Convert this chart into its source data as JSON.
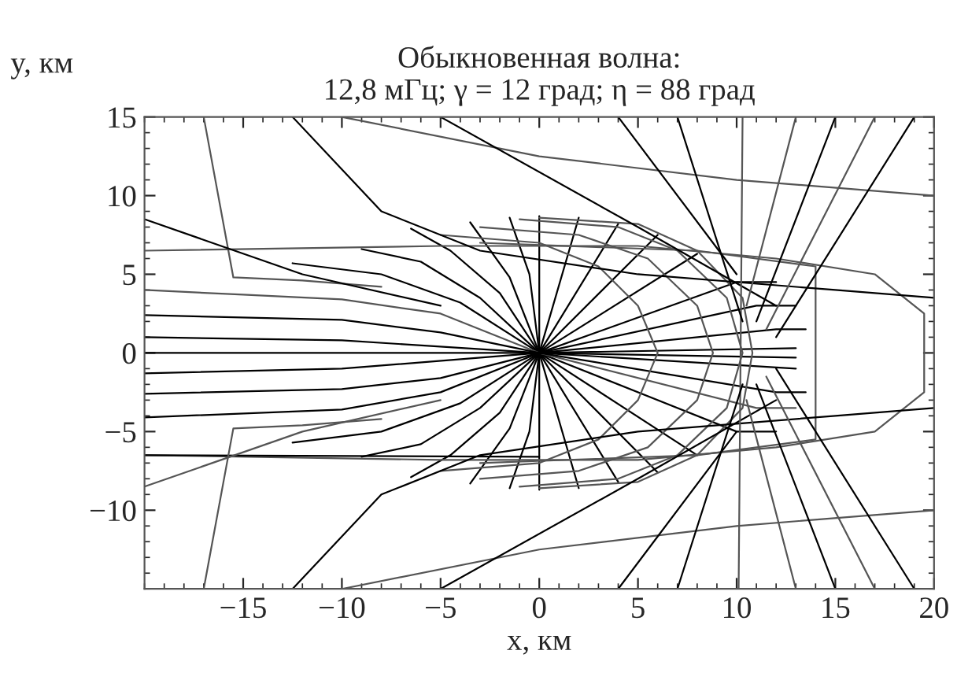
{
  "chart_data": {
    "type": "line",
    "title": "Обыкновенная волна:\n12,8 мГц; γ = 12 град; η = 88 град",
    "xlabel": "x, км",
    "ylabel": "y, км",
    "xlim": [
      -20,
      20
    ],
    "ylim": [
      -15,
      15
    ],
    "xticks": [
      -15,
      -10,
      -5,
      0,
      5,
      10,
      15,
      20
    ],
    "yticks": [
      -10,
      -5,
      0,
      5,
      10,
      15
    ],
    "grid": false,
    "marker": "none",
    "line_style": "solid",
    "series": [
      {
        "color": "#000000",
        "x": [
          -1.5,
          -0.5,
          0,
          2
        ],
        "values": [
          8.6,
          5,
          0,
          -8.6
        ]
      },
      {
        "color": "#000000",
        "x": [
          -3.5,
          -1.5,
          0,
          4
        ],
        "values": [
          8.3,
          4.8,
          0,
          -8.2
        ]
      },
      {
        "color": "#000000",
        "x": [
          -6.5,
          -4.5,
          -2,
          0,
          6
        ],
        "values": [
          7.9,
          6.5,
          3.8,
          0,
          -7.6
        ]
      },
      {
        "color": "#000000",
        "x": [
          -9,
          -6,
          -3,
          0,
          8
        ],
        "values": [
          6.6,
          5.8,
          3.5,
          0,
          -6.5
        ]
      },
      {
        "color": "#000000",
        "x": [
          -12.5,
          -8,
          -4,
          0,
          10,
          12
        ],
        "values": [
          5.7,
          5.0,
          3.2,
          0,
          -5,
          -5
        ]
      },
      {
        "color": "#555555",
        "x": [
          -20,
          -15,
          -10,
          -5,
          0,
          11,
          13
        ],
        "values": [
          4.0,
          3.7,
          3.4,
          2.5,
          0,
          -3.5,
          -3.5
        ]
      },
      {
        "color": "#000000",
        "x": [
          -20,
          -10,
          -5,
          0,
          12,
          13.5
        ],
        "values": [
          2.4,
          2.1,
          1.3,
          0,
          -2.5,
          -2.5
        ]
      },
      {
        "color": "#000000",
        "x": [
          -20,
          -10,
          0,
          13
        ],
        "values": [
          1.0,
          0.8,
          0,
          -1
        ]
      },
      {
        "color": "#000000",
        "x": [
          -20,
          0,
          13
        ],
        "values": [
          0,
          0,
          -0.3
        ]
      },
      {
        "color": "#000000",
        "x": [
          -20,
          -10,
          0,
          13
        ],
        "values": [
          -1.3,
          -1.0,
          0,
          0.3
        ]
      },
      {
        "color": "#000000",
        "x": [
          -20,
          -10,
          -5,
          0,
          12,
          13.5
        ],
        "values": [
          -2.6,
          -2.3,
          -1.6,
          0,
          1.5,
          1.5
        ]
      },
      {
        "color": "#000000",
        "x": [
          -20,
          -10,
          -5,
          0,
          11,
          13
        ],
        "values": [
          -4.1,
          -3.6,
          -2.5,
          0,
          3,
          3
        ]
      },
      {
        "color": "#000000",
        "x": [
          -12.5,
          -8,
          -4,
          0,
          10,
          12
        ],
        "values": [
          -5.7,
          -5.0,
          -3.2,
          0,
          4.5,
          4.5
        ]
      },
      {
        "color": "#000000",
        "x": [
          -9,
          -6,
          -3,
          0,
          8
        ],
        "values": [
          -6.6,
          -5.8,
          -3.5,
          0,
          6.3
        ]
      },
      {
        "color": "#000000",
        "x": [
          -6.5,
          -4.5,
          -2,
          0,
          6
        ],
        "values": [
          -7.9,
          -6.5,
          -3.8,
          0,
          7.5
        ]
      },
      {
        "color": "#000000",
        "x": [
          -3.5,
          -1.5,
          0,
          4
        ],
        "values": [
          -8.3,
          -4.8,
          0,
          8.2
        ]
      },
      {
        "color": "#000000",
        "x": [
          -1.5,
          -0.5,
          0,
          2
        ],
        "values": [
          -8.6,
          -5,
          0,
          8.6
        ]
      },
      {
        "color": "#000000",
        "x": [
          0,
          0,
          0
        ],
        "values": [
          -8.7,
          0,
          8.7
        ]
      },
      {
        "color": "#555555",
        "x": [
          -5,
          0,
          3,
          5,
          6,
          5,
          3,
          0,
          -5
        ],
        "values": [
          7.5,
          7,
          5.5,
          3,
          0,
          -3,
          -5.5,
          -7,
          -7.5
        ]
      },
      {
        "color": "#555555",
        "x": [
          -3,
          2,
          5.5,
          8,
          8.8,
          8,
          5.5,
          2,
          -3
        ],
        "values": [
          8,
          7.5,
          6,
          3,
          0,
          -3,
          -6,
          -7.5,
          -8
        ]
      },
      {
        "color": "#555555",
        "x": [
          -1,
          4,
          7,
          9.5,
          10.3,
          9.5,
          7,
          4,
          -1
        ],
        "values": [
          8.5,
          8,
          6.5,
          3.5,
          0,
          -3.5,
          -6.5,
          -8,
          -8.5
        ]
      },
      {
        "color": "#555555",
        "x": [
          0,
          5,
          8,
          10.3,
          10.8,
          10.3,
          8,
          5,
          0
        ],
        "values": [
          8.6,
          8.2,
          6.5,
          3.5,
          0,
          -3.5,
          -6.5,
          -8.2,
          -8.6
        ]
      },
      {
        "color": "#555555",
        "x": [
          -20,
          -5,
          5,
          12,
          17,
          19.5,
          19.5,
          17,
          12,
          5,
          -5,
          -20
        ],
        "values": [
          6.5,
          6.8,
          6.8,
          6.0,
          5.0,
          2.5,
          -2.5,
          -5,
          -6,
          -6.8,
          -6.8,
          -6.5
        ]
      },
      {
        "color": "#555555",
        "x": [
          -3,
          8,
          14,
          14,
          8,
          -3
        ],
        "values": [
          7,
          6.5,
          5.5,
          -5.5,
          -6.5,
          -7
        ]
      },
      {
        "color": "#000000",
        "x": [
          -20,
          0
        ],
        "values": [
          -6.5,
          -6.6
        ]
      },
      {
        "color": "#555555",
        "x": [
          -17,
          -15.5,
          -12,
          -8
        ],
        "values": [
          15,
          4.8,
          4.6,
          4.2
        ]
      },
      {
        "color": "#555555",
        "x": [
          -17,
          -15.5,
          -12,
          -8
        ],
        "values": [
          -15,
          -4.8,
          -4.6,
          -4.2
        ]
      },
      {
        "color": "#000000",
        "x": [
          -20,
          -12,
          -5
        ],
        "values": [
          8.5,
          5,
          3
        ]
      },
      {
        "color": "#555555",
        "x": [
          -20,
          -12,
          -5
        ],
        "values": [
          -8.5,
          -5,
          -3
        ]
      },
      {
        "color": "#000000",
        "x": [
          -12.5,
          -8,
          -3,
          5,
          15,
          20
        ],
        "values": [
          15,
          9,
          6.5,
          5,
          4,
          3.5
        ]
      },
      {
        "color": "#000000",
        "x": [
          -12.5,
          -8,
          -3,
          5,
          15,
          20
        ],
        "values": [
          -15,
          -9,
          -6.5,
          -5,
          -4,
          -3.5
        ]
      },
      {
        "color": "#555555",
        "x": [
          -10,
          0,
          10,
          20
        ],
        "values": [
          15,
          12.5,
          11,
          10
        ]
      },
      {
        "color": "#555555",
        "x": [
          -10,
          0,
          10,
          20
        ],
        "values": [
          -15,
          -12.5,
          -11,
          -10
        ]
      },
      {
        "color": "#000000",
        "x": [
          -5,
          5,
          12
        ],
        "values": [
          15,
          8,
          3
        ]
      },
      {
        "color": "#000000",
        "x": [
          -5,
          5,
          12
        ],
        "values": [
          -15,
          -8,
          -3
        ]
      },
      {
        "color": "#555555",
        "x": [
          10.3,
          10.1
        ],
        "values": [
          15,
          -15
        ]
      },
      {
        "color": "#000000",
        "x": [
          4,
          10
        ],
        "values": [
          15,
          5
        ]
      },
      {
        "color": "#000000",
        "x": [
          7,
          10.3
        ],
        "values": [
          15,
          2
        ]
      },
      {
        "color": "#555555",
        "x": [
          13,
          10.5
        ],
        "values": [
          15,
          3
        ]
      },
      {
        "color": "#000000",
        "x": [
          15,
          11
        ],
        "values": [
          15,
          2
        ]
      },
      {
        "color": "#555555",
        "x": [
          17,
          11.5
        ],
        "values": [
          15,
          1.5
        ]
      },
      {
        "color": "#000000",
        "x": [
          19,
          12
        ],
        "values": [
          15,
          1
        ]
      },
      {
        "color": "#000000",
        "x": [
          4,
          10
        ],
        "values": [
          -15,
          -5
        ]
      },
      {
        "color": "#000000",
        "x": [
          7,
          10.3
        ],
        "values": [
          -15,
          -2
        ]
      },
      {
        "color": "#555555",
        "x": [
          13,
          10.5
        ],
        "values": [
          -15,
          -3
        ]
      },
      {
        "color": "#000000",
        "x": [
          15,
          11
        ],
        "values": [
          -15,
          -2
        ]
      },
      {
        "color": "#555555",
        "x": [
          17,
          11.5
        ],
        "values": [
          -15,
          -1.5
        ]
      },
      {
        "color": "#000000",
        "x": [
          19,
          12
        ],
        "values": [
          -15,
          -1
        ]
      }
    ]
  }
}
